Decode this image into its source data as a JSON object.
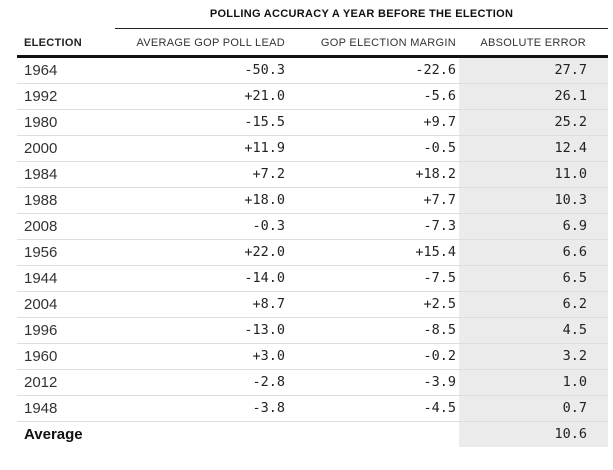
{
  "chart_data": {
    "type": "table",
    "title": "POLLING ACCURACY A YEAR BEFORE THE ELECTION",
    "columns": [
      "ELECTION",
      "AVERAGE GOP POLL LEAD",
      "GOP ELECTION MARGIN",
      "ABSOLUTE ERROR"
    ],
    "rows": [
      [
        "1964",
        "-50.3",
        "-22.6",
        "27.7"
      ],
      [
        "1992",
        "+21.0",
        "-5.6",
        "26.1"
      ],
      [
        "1980",
        "-15.5",
        "+9.7",
        "25.2"
      ],
      [
        "2000",
        "+11.9",
        "-0.5",
        "12.4"
      ],
      [
        "1984",
        "+7.2",
        "+18.2",
        "11.0"
      ],
      [
        "1988",
        "+18.0",
        "+7.7",
        "10.3"
      ],
      [
        "2008",
        "-0.3",
        "-7.3",
        "6.9"
      ],
      [
        "1956",
        "+22.0",
        "+15.4",
        "6.6"
      ],
      [
        "1944",
        "-14.0",
        "-7.5",
        "6.5"
      ],
      [
        "2004",
        "+8.7",
        "+2.5",
        "6.2"
      ],
      [
        "1996",
        "-13.0",
        "-8.5",
        "4.5"
      ],
      [
        "1960",
        "+3.0",
        "-0.2",
        "3.2"
      ],
      [
        "2012",
        "-2.8",
        "-3.9",
        "1.0"
      ],
      [
        "1948",
        "-3.8",
        "-4.5",
        "0.7"
      ]
    ],
    "footer": [
      "Average",
      "",
      "",
      "10.6"
    ],
    "layout": {
      "grid": "horizontal-rules",
      "highlight_column": "ABSOLUTE ERROR",
      "legend": false
    }
  },
  "colors": {
    "text": "#222222",
    "title_rule": "#222222",
    "header_rule": "#111111",
    "row_rule": "#dddddd",
    "highlight_column_bg": "#ebebeb",
    "background": "#ffffff"
  }
}
